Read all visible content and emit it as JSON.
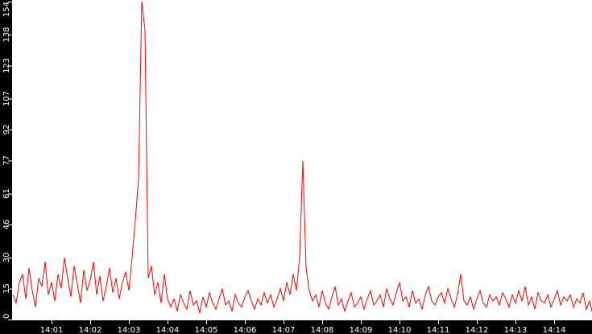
{
  "chart_data": {
    "type": "line",
    "title": "",
    "xlabel": "",
    "ylabel": "",
    "ylim": [
      0,
      154
    ],
    "xlim": [
      "14:00:00",
      "14:15:00"
    ],
    "grid": false,
    "colors": {
      "series": "#ff0000",
      "axis_background": "#000000",
      "axis_text": "#ffffff",
      "plot_background": "#ffffff"
    },
    "y_ticks": [
      "0",
      "15",
      "30",
      "46",
      "61",
      "77",
      "92",
      "107",
      "123",
      "138",
      "154"
    ],
    "x_ticks": [
      "14:01",
      "14:02",
      "14:03",
      "14:04",
      "14:05",
      "14:06",
      "14:07",
      "14:08",
      "14:09",
      "14:10",
      "14:11",
      "14:12",
      "14:13",
      "14:14"
    ],
    "series": [
      {
        "x_start": "14:00:00",
        "x_step_seconds": 5,
        "values": [
          12,
          8,
          18,
          22,
          10,
          25,
          14,
          6,
          20,
          16,
          28,
          12,
          18,
          9,
          22,
          15,
          30,
          20,
          11,
          26,
          17,
          8,
          24,
          14,
          19,
          28,
          12,
          21,
          9,
          16,
          25,
          13,
          20,
          10,
          18,
          23,
          14,
          30,
          48,
          68,
          154,
          140,
          20,
          26,
          12,
          18,
          8,
          22,
          10,
          6,
          10,
          4,
          12,
          8,
          5,
          14,
          7,
          9,
          3,
          11,
          6,
          13,
          8,
          5,
          10,
          15,
          7,
          9,
          4,
          12,
          8,
          6,
          11,
          14,
          9,
          5,
          10,
          7,
          13,
          8,
          12,
          6,
          10,
          15,
          9,
          18,
          12,
          22,
          14,
          30,
          77,
          25,
          14,
          9,
          12,
          6,
          14,
          8,
          5,
          11,
          16,
          7,
          10,
          4,
          9,
          13,
          6,
          8,
          11,
          5,
          10,
          14,
          7,
          9,
          12,
          6,
          15,
          10,
          7,
          13,
          18,
          9,
          11,
          6,
          14,
          8,
          10,
          5,
          12,
          16,
          9,
          7,
          11,
          13,
          8,
          15,
          10,
          6,
          12,
          22,
          9,
          7,
          11,
          5,
          10,
          14,
          8,
          6,
          12,
          9,
          11,
          7,
          13,
          10,
          6,
          12,
          8,
          14,
          9,
          16,
          7,
          11,
          5,
          13,
          9,
          8,
          12,
          6,
          10,
          14,
          7,
          11,
          9,
          12,
          6,
          10,
          8,
          13,
          5,
          9,
          4
        ]
      }
    ]
  }
}
